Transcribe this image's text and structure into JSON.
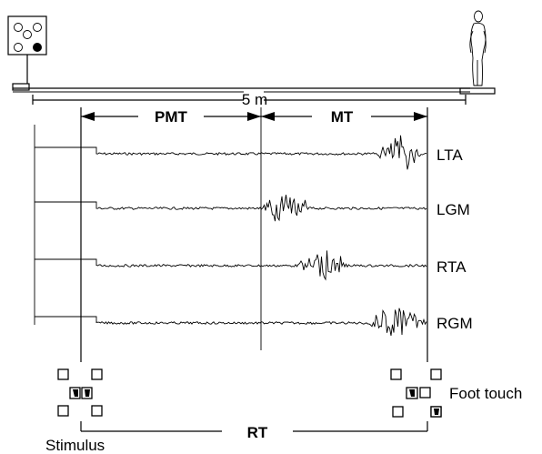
{
  "distance_label": "5 m",
  "intervals": {
    "pmt": "PMT",
    "mt": "MT",
    "rt": "RT"
  },
  "labels": {
    "stimulus": "Stimulus",
    "foot_touch": "Foot touch"
  },
  "channels": [
    {
      "id": "lta",
      "label": "LTA",
      "burst_start": 0.68,
      "burst_end": 0.98
    },
    {
      "id": "lgm",
      "label": "LGM",
      "burst_start": 0.0,
      "burst_end": 0.3
    },
    {
      "id": "rta",
      "label": "RTA",
      "burst_start": 0.22,
      "burst_end": 0.52
    },
    {
      "id": "rgm",
      "label": "RGM",
      "burst_start": 0.64,
      "burst_end": 1.0
    }
  ],
  "colors": {
    "ink": "#000000",
    "background": "#ffffff"
  },
  "icons": {
    "stimulus_panel": "led-panel-icon",
    "subject": "standing-person-icon",
    "foot_pad": "foot-pad-icon"
  }
}
